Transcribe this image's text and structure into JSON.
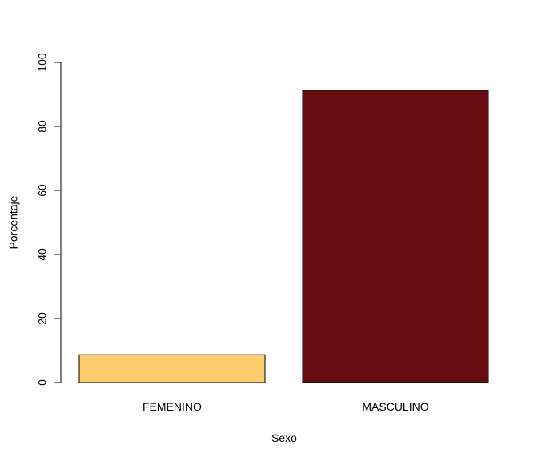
{
  "chart_data": {
    "type": "bar",
    "title": "",
    "xlabel": "Sexo",
    "ylabel": "Porcentaje",
    "categories": [
      "FEMENINO",
      "MASCULINO"
    ],
    "values": [
      8.7,
      91.3
    ],
    "ylim": [
      0,
      100
    ],
    "yticks": [
      "0",
      "20",
      "40",
      "60",
      "80",
      "100"
    ],
    "colors": [
      "#FFCC6E",
      "#660D12"
    ],
    "grid": false,
    "legend": "none"
  }
}
